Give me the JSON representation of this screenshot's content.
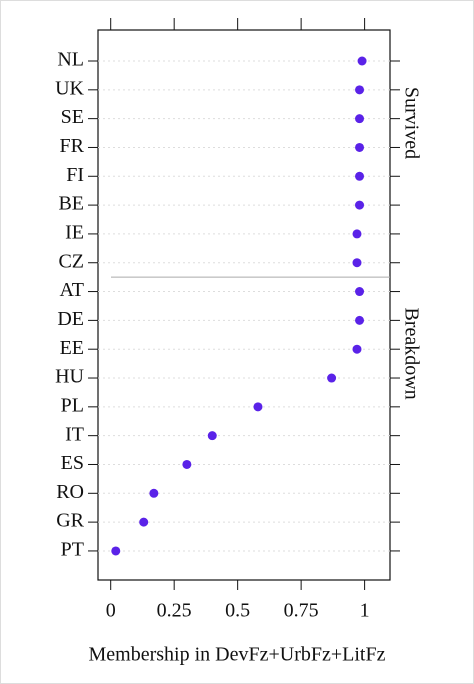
{
  "chart_data": {
    "type": "dot",
    "x_label": "Membership in DevFz+UrbFz+LitFz",
    "categories": [
      "NL",
      "UK",
      "SE",
      "FR",
      "FI",
      "BE",
      "IE",
      "CZ",
      "AT",
      "DE",
      "EE",
      "HU",
      "PL",
      "IT",
      "ES",
      "RO",
      "GR",
      "PT"
    ],
    "values": [
      0.99,
      0.98,
      0.98,
      0.98,
      0.98,
      0.98,
      0.97,
      0.97,
      0.98,
      0.98,
      0.97,
      0.87,
      0.58,
      0.4,
      0.3,
      0.17,
      0.13,
      0.02
    ],
    "groups": [
      {
        "label": "Survived",
        "size": 8
      },
      {
        "label": "Breakdown",
        "size": 10
      }
    ],
    "color": "#5a22e8",
    "xlim": [
      -0.05,
      1.1
    ],
    "xticks": [
      0,
      0.25,
      0.5,
      0.75,
      1
    ],
    "grid": true
  }
}
